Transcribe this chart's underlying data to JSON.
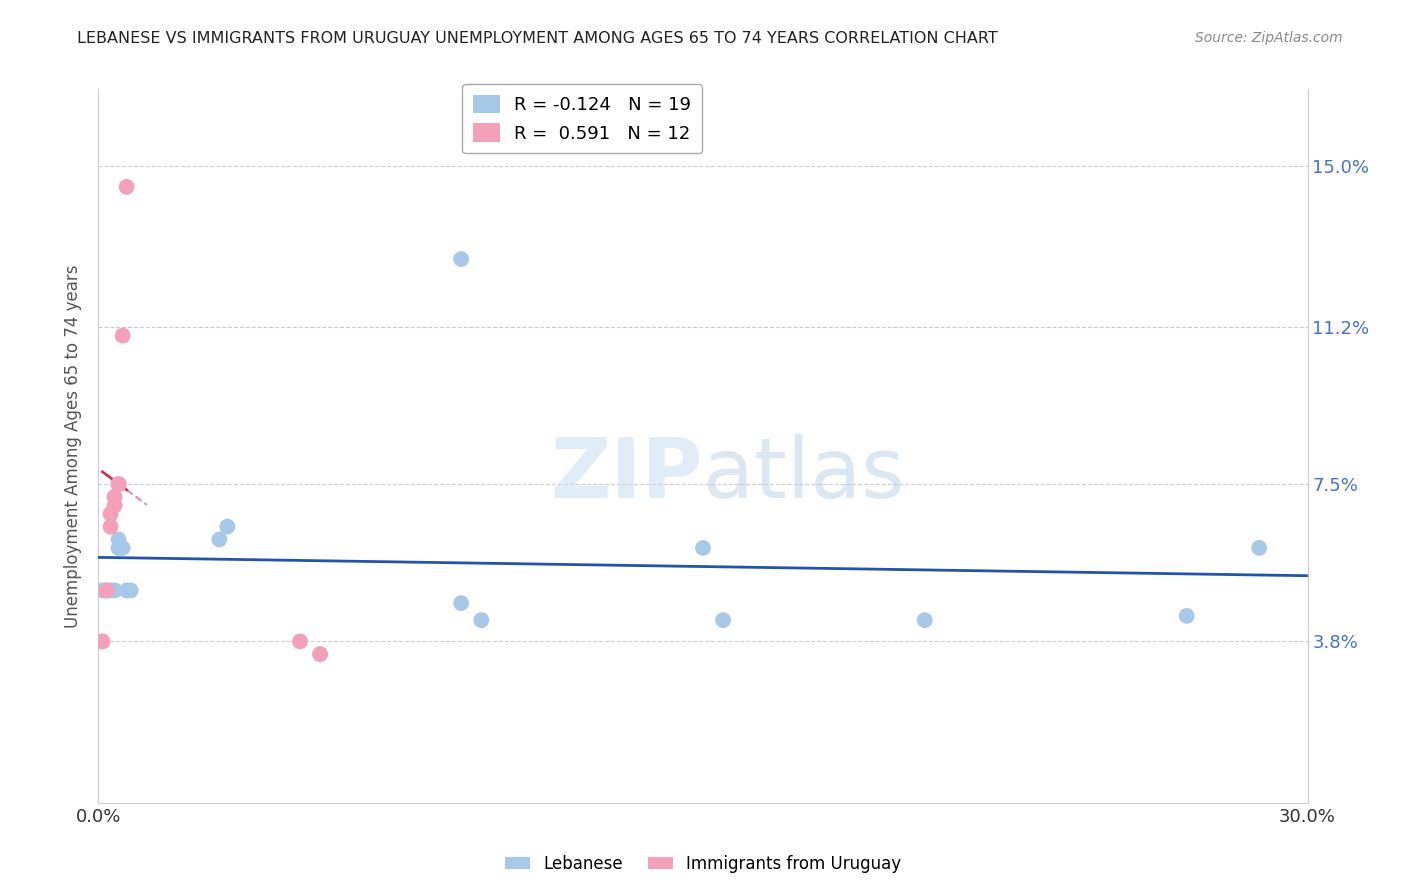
{
  "title": "LEBANESE VS IMMIGRANTS FROM URUGUAY UNEMPLOYMENT AMONG AGES 65 TO 74 YEARS CORRELATION CHART",
  "source": "Source: ZipAtlas.com",
  "ylabel": "Unemployment Among Ages 65 to 74 years",
  "xlim": [
    0.0,
    0.3
  ],
  "ylim": [
    0.0,
    0.168
  ],
  "yticks": [
    0.038,
    0.075,
    0.112,
    0.15
  ],
  "ytick_labels": [
    "3.8%",
    "7.5%",
    "11.2%",
    "15.0%"
  ],
  "xticks": [
    0.0,
    0.05,
    0.1,
    0.15,
    0.2,
    0.25,
    0.3
  ],
  "xtick_labels": [
    "0.0%",
    "",
    "",
    "",
    "",
    "",
    "30.0%"
  ],
  "watermark_zip": "ZIP",
  "watermark_atlas": "atlas",
  "lebanese_color": "#a8c8e8",
  "uruguay_color": "#f4a0b8",
  "lebanese_line_color": "#2255aa",
  "uruguay_line_color": "#cc3355",
  "legend_r_lebanese": "-0.124",
  "legend_n_lebanese": "19",
  "legend_r_uruguay": "0.591",
  "legend_n_uruguay": "12",
  "lebanese_points": [
    [
      0.001,
      0.05
    ],
    [
      0.002,
      0.05
    ],
    [
      0.003,
      0.05
    ],
    [
      0.004,
      0.05
    ],
    [
      0.005,
      0.06
    ],
    [
      0.005,
      0.062
    ],
    [
      0.006,
      0.06
    ],
    [
      0.007,
      0.05
    ],
    [
      0.008,
      0.05
    ],
    [
      0.03,
      0.062
    ],
    [
      0.032,
      0.065
    ],
    [
      0.09,
      0.047
    ],
    [
      0.095,
      0.043
    ],
    [
      0.09,
      0.128
    ],
    [
      0.15,
      0.06
    ],
    [
      0.155,
      0.043
    ],
    [
      0.205,
      0.043
    ],
    [
      0.27,
      0.044
    ],
    [
      0.288,
      0.06
    ]
  ],
  "uruguay_points": [
    [
      0.001,
      0.038
    ],
    [
      0.002,
      0.05
    ],
    [
      0.003,
      0.065
    ],
    [
      0.003,
      0.068
    ],
    [
      0.004,
      0.07
    ],
    [
      0.004,
      0.072
    ],
    [
      0.005,
      0.075
    ],
    [
      0.005,
      0.075
    ],
    [
      0.006,
      0.11
    ],
    [
      0.007,
      0.145
    ],
    [
      0.05,
      0.038
    ],
    [
      0.055,
      0.035
    ]
  ],
  "background_color": "#ffffff"
}
